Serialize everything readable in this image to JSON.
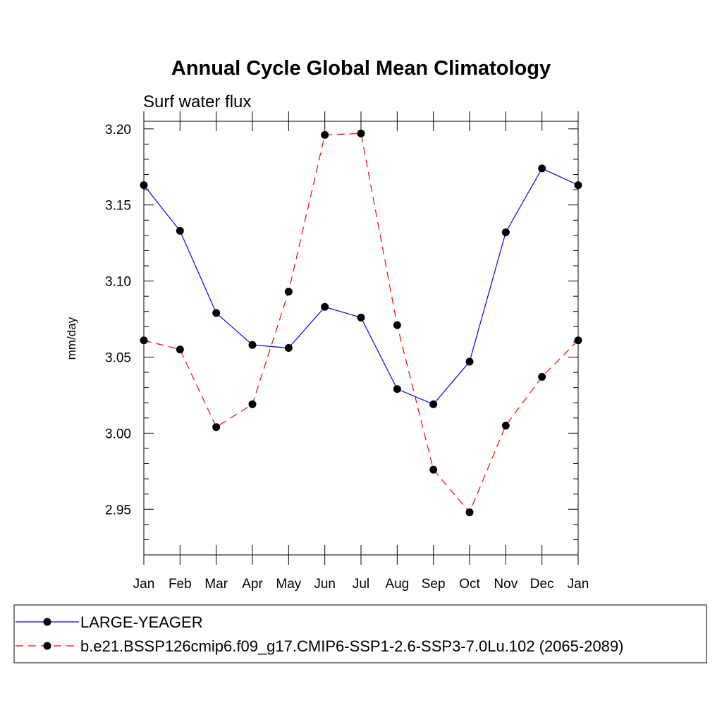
{
  "chart_data": {
    "type": "line",
    "title": "Annual Cycle Global Mean Climatology",
    "subtitle": "Surf water flux",
    "ylabel": "mm/day",
    "xlabel": "",
    "categories": [
      "Jan",
      "Feb",
      "Mar",
      "Apr",
      "May",
      "Jun",
      "Jul",
      "Aug",
      "Sep",
      "Oct",
      "Nov",
      "Dec",
      "Jan"
    ],
    "y_ticks": [
      "2.95",
      "3.00",
      "3.05",
      "3.10",
      "3.15",
      "3.20"
    ],
    "ylim": [
      2.92,
      3.205
    ],
    "grid": false,
    "legend_position": "bottom",
    "series": [
      {
        "name": "LARGE-YEAGER",
        "color": "#0000ff",
        "line_style": "solid",
        "marker": "filled-circle",
        "values": [
          3.163,
          3.133,
          3.079,
          3.058,
          3.056,
          3.083,
          3.076,
          3.029,
          3.019,
          3.047,
          3.132,
          3.174,
          3.163
        ]
      },
      {
        "name": "b.e21.BSSP126cmip6.f09_g17.CMIP6-SSP1-2.6-SSP3-7.0Lu.102 (2065-2089)",
        "color": "#ff0000",
        "line_style": "dashed",
        "marker": "filled-circle",
        "values": [
          3.061,
          3.055,
          3.004,
          3.019,
          3.093,
          3.196,
          3.197,
          3.071,
          2.976,
          2.948,
          3.005,
          3.037,
          3.061
        ]
      }
    ]
  }
}
